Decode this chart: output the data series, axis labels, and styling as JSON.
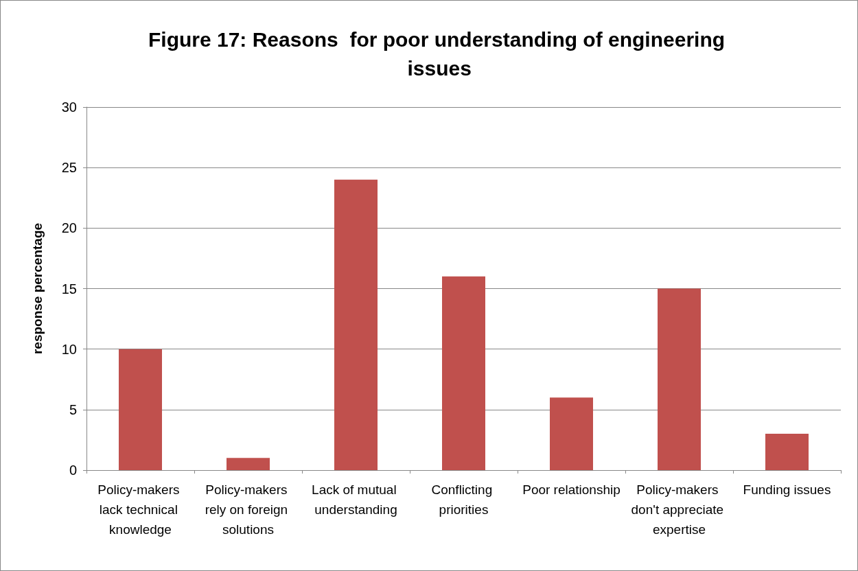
{
  "chart_data": {
    "type": "bar",
    "title": "Figure 17: Reasons  for poor understanding of engineering issues",
    "ylabel": "response percentage",
    "categories": [
      "Policy-makers lack technical knowledge",
      "Policy-makers rely on foreign solutions",
      "Lack of mutual understanding",
      "Conflicting priorities",
      "Poor relationship",
      "Policy-makers don't appreciate expertise",
      "Funding issues"
    ],
    "values": [
      10,
      1,
      24,
      16,
      6,
      15,
      3
    ],
    "color": "#c0504d",
    "ylim": [
      0,
      30
    ],
    "yticks": [
      0,
      5,
      10,
      15,
      20,
      25,
      30
    ],
    "grid": "y"
  }
}
